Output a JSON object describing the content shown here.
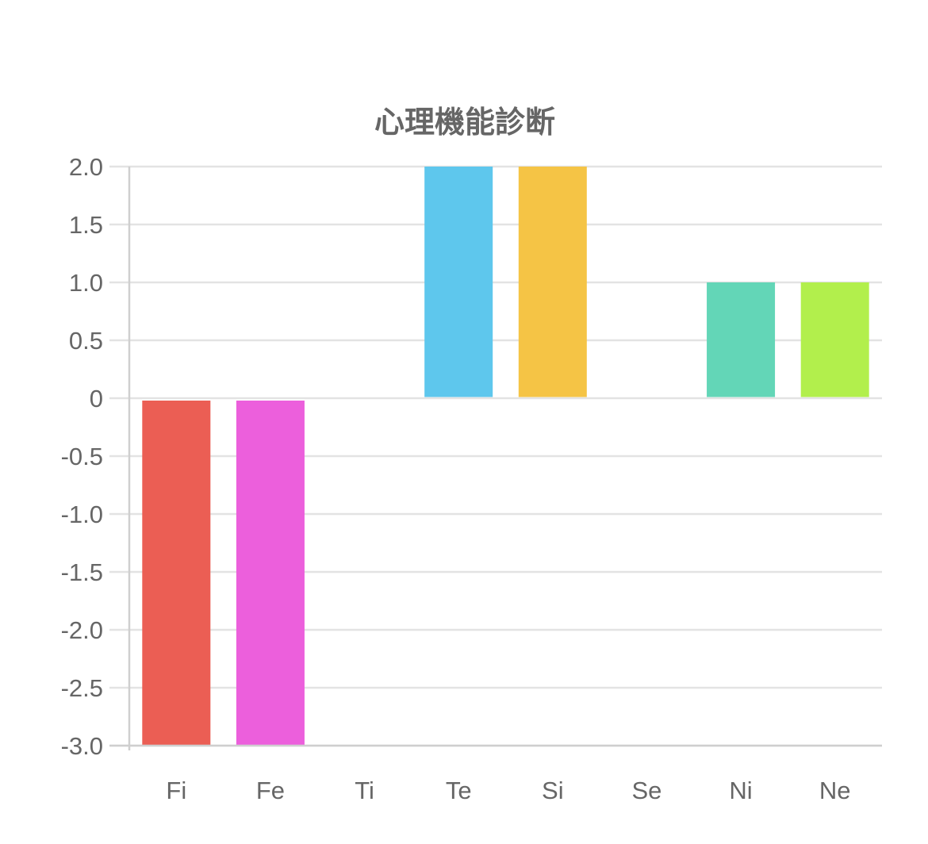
{
  "chart_data": {
    "type": "bar",
    "title": "心理機能診断",
    "xlabel": "",
    "ylabel": "",
    "categories": [
      "Fi",
      "Fe",
      "Ti",
      "Te",
      "Si",
      "Se",
      "Ni",
      "Ne"
    ],
    "values": [
      -3.0,
      -3.0,
      0,
      2.0,
      2.0,
      0,
      1.0,
      1.0
    ],
    "colors": [
      "#eb5e54",
      "#ec5fdc",
      "#cccccc",
      "#5ec7ed",
      "#f5c445",
      "#cccccc",
      "#63d6b7",
      "#b2ef4c"
    ],
    "ylim": [
      -3.0,
      2.0
    ],
    "yticks": [
      2.0,
      1.5,
      1.0,
      0.5,
      0,
      -0.5,
      -1.0,
      -1.5,
      -2.0,
      -2.5,
      -3.0
    ],
    "ytick_labels": [
      "2.0",
      "1.5",
      "1.0",
      "0.5",
      "0",
      "-0.5",
      "-1.0",
      "-1.5",
      "-2.0",
      "-2.5",
      "-3.0"
    ],
    "grid": true,
    "legend": false
  }
}
